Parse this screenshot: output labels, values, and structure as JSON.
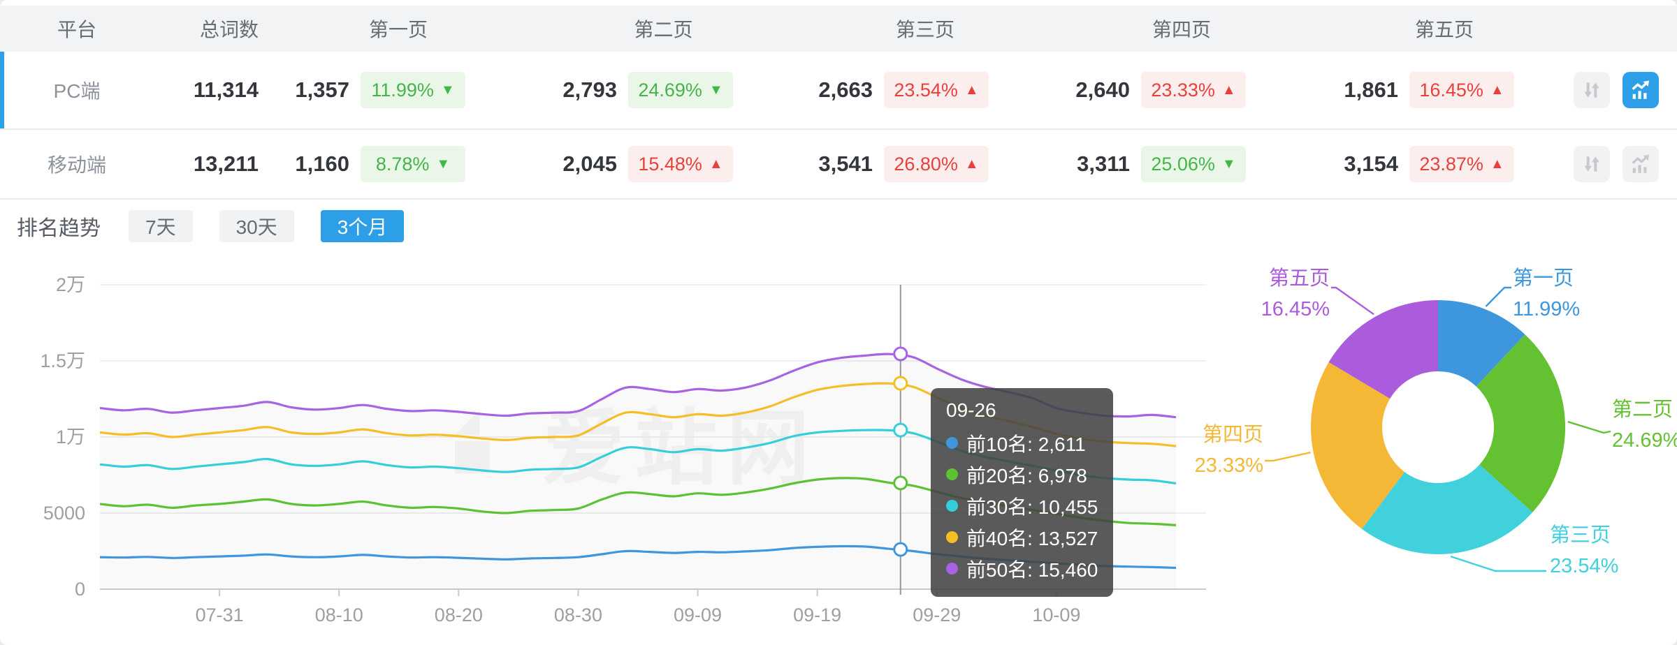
{
  "table": {
    "headers": {
      "platform": "平台",
      "total": "总词数",
      "pages": [
        "第一页",
        "第二页",
        "第三页",
        "第四页",
        "第五页"
      ]
    },
    "rows": [
      {
        "platform": "PC端",
        "total": "11,314",
        "selected": true,
        "actions": {
          "compare_active": false,
          "chart_active": true
        },
        "pages": [
          {
            "count": "1,357",
            "pct": "11.99%",
            "arrow": "▼",
            "tone": "green"
          },
          {
            "count": "2,793",
            "pct": "24.69%",
            "arrow": "▼",
            "tone": "green"
          },
          {
            "count": "2,663",
            "pct": "23.54%",
            "arrow": "▲",
            "tone": "red"
          },
          {
            "count": "2,640",
            "pct": "23.33%",
            "arrow": "▲",
            "tone": "red"
          },
          {
            "count": "1,861",
            "pct": "16.45%",
            "arrow": "▲",
            "tone": "red"
          }
        ]
      },
      {
        "platform": "移动端",
        "total": "13,211",
        "selected": false,
        "actions": {
          "compare_active": false,
          "chart_active": false
        },
        "pages": [
          {
            "count": "1,160",
            "pct": "8.78%",
            "arrow": "▼",
            "tone": "green"
          },
          {
            "count": "2,045",
            "pct": "15.48%",
            "arrow": "▲",
            "tone": "red"
          },
          {
            "count": "3,541",
            "pct": "26.80%",
            "arrow": "▲",
            "tone": "red"
          },
          {
            "count": "3,311",
            "pct": "25.06%",
            "arrow": "▼",
            "tone": "green"
          },
          {
            "count": "3,154",
            "pct": "23.87%",
            "arrow": "▲",
            "tone": "red"
          }
        ]
      }
    ]
  },
  "trend": {
    "title": "排名趋势",
    "tabs": [
      {
        "label": "7天",
        "active": false
      },
      {
        "label": "30天",
        "active": false
      },
      {
        "label": "3个月",
        "active": true
      }
    ]
  },
  "watermark": "爱站网",
  "colors": {
    "accent": "#2d9fe8",
    "up_red": "#e7413d",
    "down_green": "#45b549",
    "axis_text": "#9aa0a6",
    "grid": "#efefef",
    "crosshair": "#999999"
  },
  "chart_data": [
    {
      "type": "line",
      "title": "排名趋势 (3个月)",
      "x_tick_labels": [
        "07-31",
        "08-10",
        "08-20",
        "08-30",
        "09-09",
        "09-19",
        "09-29",
        "10-09"
      ],
      "y_ticks": [
        {
          "v": 0,
          "label": "0"
        },
        {
          "v": 5000,
          "label": "5000"
        },
        {
          "v": 10000,
          "label": "1万"
        },
        {
          "v": 15000,
          "label": "1.5万"
        },
        {
          "v": 20000,
          "label": "2万"
        }
      ],
      "ylim": [
        0,
        20000
      ],
      "grid": true,
      "series": [
        {
          "name": "前10名",
          "color": "#3f96dc",
          "values": [
            2100,
            2080,
            2120,
            2050,
            2100,
            2150,
            2200,
            2280,
            2150,
            2100,
            2150,
            2250,
            2150,
            2080,
            2100,
            2060,
            2000,
            1960,
            2020,
            2050,
            2100,
            2300,
            2500,
            2450,
            2380,
            2450,
            2420,
            2480,
            2560,
            2700,
            2780,
            2820,
            2800,
            2650,
            2500,
            2300,
            2150,
            2000,
            1900,
            1800,
            1700,
            1600,
            1520,
            1480,
            1450,
            1400
          ]
        },
        {
          "name": "前20名",
          "color": "#5bc234",
          "values": [
            5600,
            5450,
            5550,
            5350,
            5500,
            5600,
            5750,
            5900,
            5600,
            5500,
            5600,
            5750,
            5500,
            5350,
            5400,
            5300,
            5100,
            5000,
            5150,
            5200,
            5300,
            5900,
            6350,
            6250,
            6100,
            6300,
            6200,
            6350,
            6600,
            6950,
            7200,
            7300,
            7250,
            7000,
            6800,
            6400,
            6000,
            5700,
            5450,
            5200,
            4950,
            4700,
            4500,
            4350,
            4300,
            4200
          ]
        },
        {
          "name": "前30名",
          "color": "#35cedb",
          "values": [
            8200,
            8050,
            8150,
            7900,
            8050,
            8200,
            8350,
            8550,
            8200,
            8100,
            8200,
            8400,
            8150,
            8000,
            8050,
            7950,
            7800,
            7700,
            7850,
            7900,
            8000,
            8700,
            9300,
            9200,
            9000,
            9200,
            9100,
            9300,
            9600,
            10050,
            10300,
            10400,
            10450,
            10440,
            10250,
            9700,
            9100,
            8700,
            8400,
            8100,
            7800,
            7500,
            7300,
            7200,
            7150,
            6950
          ]
        },
        {
          "name": "前40名",
          "color": "#f5bd26",
          "values": [
            10300,
            10150,
            10250,
            10000,
            10150,
            10300,
            10450,
            10650,
            10300,
            10200,
            10300,
            10500,
            10250,
            10100,
            10150,
            10050,
            9900,
            9800,
            9950,
            10000,
            10100,
            10900,
            11600,
            11500,
            11300,
            11500,
            11400,
            11600,
            12000,
            12600,
            13100,
            13350,
            13480,
            13520,
            13300,
            12600,
            11900,
            11400,
            11050,
            10650,
            10200,
            9900,
            9700,
            9600,
            9550,
            9400
          ]
        },
        {
          "name": "前50名",
          "color": "#a863e2",
          "values": [
            11900,
            11750,
            11850,
            11600,
            11750,
            11900,
            12050,
            12300,
            11950,
            11800,
            11900,
            12100,
            11850,
            11700,
            11750,
            11650,
            11500,
            11400,
            11550,
            11600,
            11700,
            12500,
            13250,
            13150,
            12950,
            13150,
            13050,
            13250,
            13700,
            14350,
            14900,
            15200,
            15350,
            15450,
            15250,
            14500,
            13800,
            13300,
            12950,
            12550,
            11900,
            11600,
            11400,
            11350,
            11450,
            11300
          ]
        }
      ],
      "tooltip": {
        "title": "09-26",
        "x_frac": 0.744,
        "entries": [
          {
            "name": "前10名",
            "value": "2,611",
            "v": 2611,
            "color": "#3f96dc"
          },
          {
            "name": "前20名",
            "value": "6,978",
            "v": 6978,
            "color": "#5bc234"
          },
          {
            "name": "前30名",
            "value": "10,455",
            "v": 10455,
            "color": "#35cedb"
          },
          {
            "name": "前40名",
            "value": "13,527",
            "v": 13527,
            "color": "#f5bd26"
          },
          {
            "name": "前50名",
            "value": "15,460",
            "v": 15460,
            "color": "#a863e2"
          }
        ]
      }
    },
    {
      "type": "pie",
      "donut": true,
      "slices": [
        {
          "label": "第一页",
          "pct": 11.99,
          "pct_label": "11.99%",
          "color": "#3e97dd"
        },
        {
          "label": "第二页",
          "pct": 24.69,
          "pct_label": "24.69%",
          "color": "#64c132"
        },
        {
          "label": "第三页",
          "pct": 23.54,
          "pct_label": "23.54%",
          "color": "#41d1dc"
        },
        {
          "label": "第四页",
          "pct": 23.33,
          "pct_label": "23.33%",
          "color": "#f4b836"
        },
        {
          "label": "第五页",
          "pct": 16.45,
          "pct_label": "16.45%",
          "color": "#ab5cdc"
        }
      ]
    }
  ]
}
